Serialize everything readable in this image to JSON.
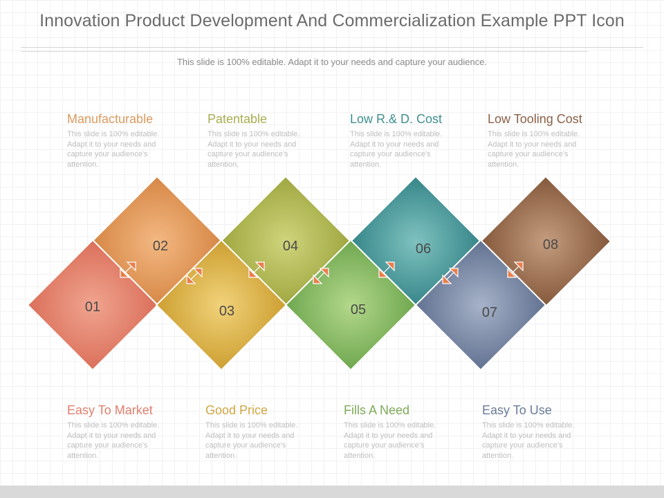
{
  "title": "Innovation Product Development And Commercialization Example PPT Icon",
  "subtitle": "This slide is 100% editable. Adapt it to your needs and capture your audience.",
  "features": [
    {
      "title": "Manufacturable",
      "text": "This slide is 100% editable. Adapt it to your needs and capture your audience's attention.",
      "color": "#dc9a5e"
    },
    {
      "title": "Patentable",
      "text": "This slide is 100% editable. Adapt it to your needs and capture your audience's attention.",
      "color": "#a8ad4e"
    },
    {
      "title": "Low R.& D. Cost",
      "text": "This slide is 100% editable. Adapt it to your needs and capture your audience's attention.",
      "color": "#3f8f8f"
    },
    {
      "title": "Low Tooling Cost",
      "text": "This slide is 100% editable. Adapt it to your needs and capture your audience's attention.",
      "color": "#8a6046"
    },
    {
      "title": "Easy To Market",
      "text": "This slide is 100% editable. Adapt it to your needs and capture your audience's attention.",
      "color": "#e07f6e"
    },
    {
      "title": "Good Price",
      "text": "This slide is 100% editable. Adapt it to your needs and capture your audience's attention.",
      "color": "#d0a640"
    },
    {
      "title": "Fills A Need",
      "text": "This slide is 100% editable. Adapt it to your needs and capture your audience's attention.",
      "color": "#7eaa58"
    },
    {
      "title": "Easy To Use",
      "text": "This slide is 100% editable. Adapt it to your needs and capture your audience's attention.",
      "color": "#6a7a98"
    }
  ],
  "steps": [
    {
      "label": "01",
      "light": "#f0a48f",
      "dark": "#d86a55"
    },
    {
      "label": "02",
      "light": "#f3b882",
      "dark": "#d3823f"
    },
    {
      "label": "03",
      "light": "#f1d27a",
      "dark": "#c99a2a"
    },
    {
      "label": "04",
      "light": "#cfd47b",
      "dark": "#9aa23a"
    },
    {
      "label": "05",
      "light": "#b3d88a",
      "dark": "#68a24a"
    },
    {
      "label": "06",
      "light": "#7fc2c0",
      "dark": "#2f7f83"
    },
    {
      "label": "07",
      "light": "#a6b2c8",
      "dark": "#5b6b8b"
    },
    {
      "label": "08",
      "light": "#c59c7e",
      "dark": "#7e5234"
    }
  ],
  "arrow_color": "#e97f4e"
}
